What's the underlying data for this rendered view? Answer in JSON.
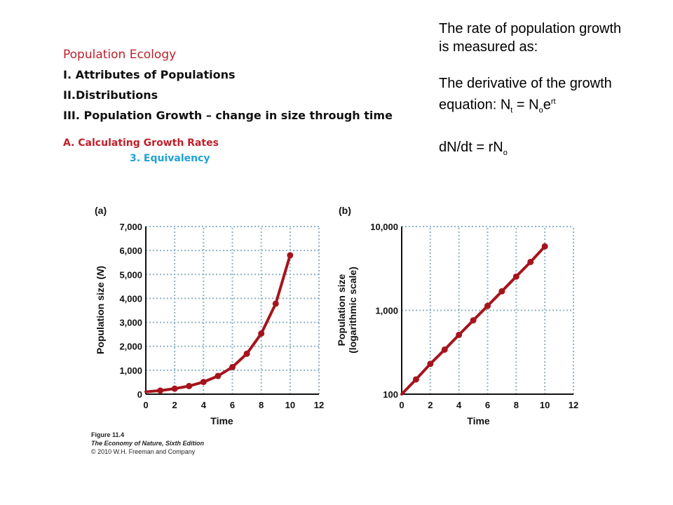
{
  "outline": {
    "title": "Population Ecology",
    "item1": "I. Attributes of Populations",
    "item2": "II.Distributions",
    "item3": "III. Population Growth – change in size through time",
    "sub_a": "A. Calculating  Growth Rates",
    "sub_3": "3. Equivalency"
  },
  "side_text": {
    "line1": "The rate of population growth",
    "line2": "is measured as:",
    "deriv1": "The derivative of the growth",
    "eq_prefix": "equation: N",
    "eq_sub_t": "t",
    "eq_mid": " = N",
    "eq_sub_o": "o",
    "eq_e": "e",
    "eq_sup_rt": "rt",
    "dndt_prefix": "dN/dt = rN",
    "dndt_sub": "o"
  },
  "caption": {
    "figure": "Figure 11.4",
    "book": "The Economy of Nature, Sixth Edition",
    "copyright": "© 2010 W.H. Freeman and Company"
  },
  "colors": {
    "line": "#a5141d",
    "grid": "#8fb3c6",
    "axis": "#111111"
  },
  "chart_data": [
    {
      "type": "line",
      "panel_label": "(a)",
      "xlabel": "Time",
      "ylabel_main": "Population size (",
      "ylabel_var": "N",
      "ylabel_close": ")",
      "xlim": [
        0,
        12
      ],
      "ylim": [
        0,
        7000
      ],
      "x_ticks": [
        0,
        2,
        4,
        6,
        8,
        10,
        12
      ],
      "x_tick_labels": [
        "0",
        "2",
        "4",
        "6",
        "8",
        "10",
        "12"
      ],
      "y_ticks": [
        0,
        1000,
        2000,
        3000,
        4000,
        5000,
        6000,
        7000
      ],
      "y_tick_labels": [
        "0",
        "1,000",
        "2,000",
        "3,000",
        "4,000",
        "5,000",
        "6,000",
        "7,000"
      ],
      "grid": true,
      "x": [
        0,
        1,
        2,
        3,
        4,
        5,
        6,
        7,
        8,
        9,
        10
      ],
      "y": [
        100,
        150,
        230,
        340,
        510,
        760,
        1130,
        1690,
        2530,
        3780,
        5800
      ]
    },
    {
      "type": "line",
      "panel_label": "(b)",
      "xlabel": "Time",
      "ylabel_line1": "Population size",
      "ylabel_line2": "(logarithmic scale)",
      "yscale": "log",
      "xlim": [
        0,
        12
      ],
      "ylim": [
        100,
        10000
      ],
      "x_ticks": [
        0,
        2,
        4,
        6,
        8,
        10,
        12
      ],
      "x_tick_labels": [
        "0",
        "2",
        "4",
        "6",
        "8",
        "10",
        "12"
      ],
      "y_ticks": [
        100,
        1000,
        10000
      ],
      "y_tick_labels": [
        "100",
        "1,000",
        "10,000"
      ],
      "grid": true,
      "x": [
        0,
        1,
        2,
        3,
        4,
        5,
        6,
        7,
        8,
        9,
        10
      ],
      "y": [
        100,
        150,
        230,
        340,
        510,
        760,
        1130,
        1690,
        2530,
        3780,
        5800
      ]
    }
  ]
}
